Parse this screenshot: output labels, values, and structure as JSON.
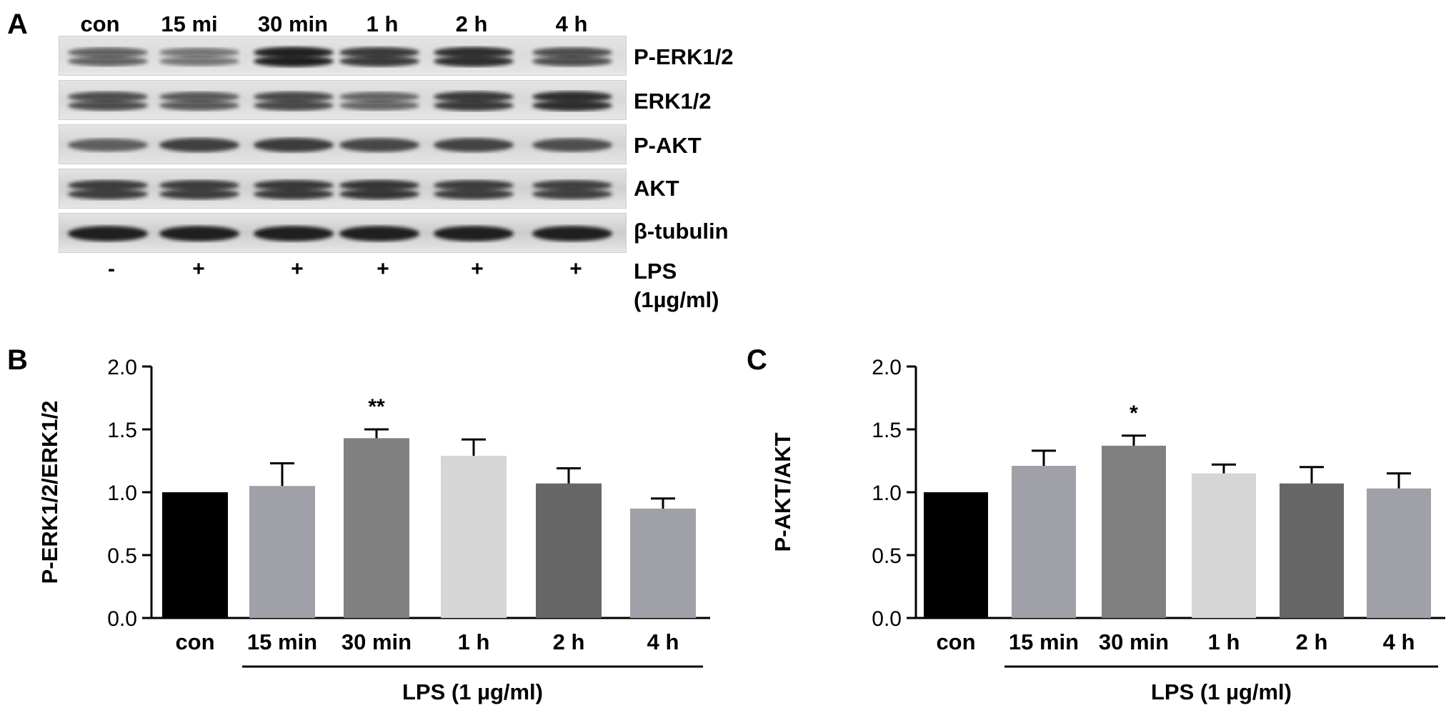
{
  "panelA": {
    "letter": "A",
    "lanes": [
      "con",
      "15 mi",
      "30 min",
      "1 h",
      "2 h",
      "4 h"
    ],
    "blots": [
      {
        "label": "P-ERK1/2",
        "intensity": [
          0.62,
          0.52,
          0.95,
          0.82,
          0.88,
          0.72
        ],
        "double": true
      },
      {
        "label": "ERK1/2",
        "intensity": [
          0.72,
          0.66,
          0.74,
          0.6,
          0.82,
          0.88
        ],
        "double": true
      },
      {
        "label": "P-AKT",
        "intensity": [
          0.62,
          0.78,
          0.8,
          0.74,
          0.76,
          0.7
        ],
        "double": false
      },
      {
        "label": "AKT",
        "intensity": [
          0.8,
          0.8,
          0.82,
          0.84,
          0.8,
          0.78
        ],
        "double": true
      },
      {
        "label": "β-tubulin",
        "intensity": [
          0.95,
          0.95,
          0.95,
          0.95,
          0.95,
          0.95
        ],
        "double": false
      }
    ],
    "lps_signs": [
      "-",
      "+",
      "+",
      "+",
      "+",
      "+"
    ],
    "lps_label_line1": "LPS",
    "lps_label_line2": "(1µg/ml)"
  },
  "charts": [
    {
      "letter": "B",
      "type": "bar",
      "ylabel": "P-ERK1/2/ERK1/2",
      "categories": [
        "con",
        "15 min",
        "30 min",
        "1 h",
        "2 h",
        "4 h"
      ],
      "values": [
        1.0,
        1.05,
        1.43,
        1.29,
        1.07,
        0.87
      ],
      "errors": [
        0.0,
        0.18,
        0.07,
        0.13,
        0.12,
        0.08
      ],
      "significance": [
        "",
        "",
        "**",
        "",
        "",
        ""
      ],
      "bar_colors": [
        "#000000",
        "#a0a0a8",
        "#808080",
        "#d6d6d6",
        "#666666",
        "#a0a0a8"
      ],
      "ylim": [
        0,
        2.0
      ],
      "yticks": [
        "0.0",
        "0.5",
        "1.0",
        "1.5",
        "2.0"
      ],
      "group_label": "LPS (1 µg/ml)"
    },
    {
      "letter": "C",
      "type": "bar",
      "ylabel": "P-AKT/AKT",
      "categories": [
        "con",
        "15 min",
        "30 min",
        "1 h",
        "2 h",
        "4 h"
      ],
      "values": [
        1.0,
        1.21,
        1.37,
        1.15,
        1.07,
        1.03
      ],
      "errors": [
        0.0,
        0.12,
        0.08,
        0.07,
        0.13,
        0.12
      ],
      "significance": [
        "",
        "",
        "*",
        "",
        "",
        ""
      ],
      "bar_colors": [
        "#000000",
        "#a0a0a8",
        "#808080",
        "#d6d6d6",
        "#666666",
        "#a0a0a8"
      ],
      "ylim": [
        0,
        2.0
      ],
      "yticks": [
        "0.0",
        "0.5",
        "1.0",
        "1.5",
        "2.0"
      ],
      "group_label": "LPS (1 µg/ml)"
    }
  ]
}
